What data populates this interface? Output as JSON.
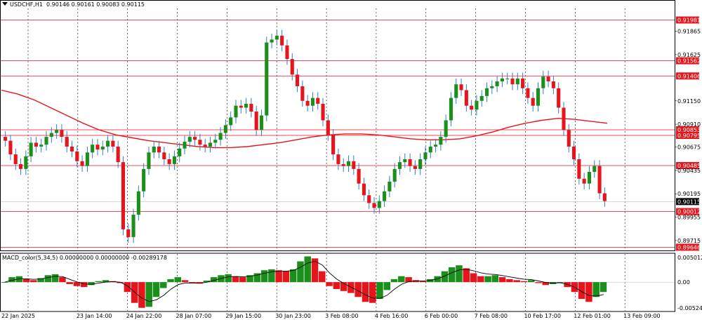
{
  "header": {
    "symbol": "USDCHF,H1",
    "ohlc": "0.90146 0.90161 0.90083 0.90115"
  },
  "indicator": {
    "label": "MACD_color(5,34,5) 0.00000000 0.00000000 -0.00289178"
  },
  "colors": {
    "bull": "#1a8f1a",
    "bear": "#e8141b",
    "wick": "#2f7fd0",
    "ma": "#e8141b",
    "level": "#e8141b",
    "bid": "#c8c8c8",
    "grid": "#000000",
    "signal": "#000000"
  },
  "chart_data": [
    {
      "type": "line",
      "title": "USDCHF,H1",
      "y_ticks": [
        "0.91865",
        "0.91625",
        "0.91150",
        "0.90910",
        "0.90675",
        "0.90435",
        "0.90195",
        "0.89955",
        "0.89715"
      ],
      "ylim": [
        0.8962,
        0.921
      ],
      "horizontal_levels": [
        "0.91981",
        "0.91562",
        "0.91406",
        "0.90853",
        "0.90795",
        "0.90485",
        "0.90012",
        "0.89646"
      ],
      "current_price": "0.90115",
      "x_ticks": [
        "22 Jan 2025",
        "23 Jan 14:00",
        "24 Jan 22:00",
        "28 Jan 07:00",
        "29 Jan 15:00",
        "30 Jan 23:00",
        "3 Feb 08:00",
        "4 Feb 16:00",
        "6 Feb 00:00",
        "7 Feb 08:00",
        "10 Feb 17:00",
        "12 Feb 01:00",
        "13 Feb 09:00"
      ],
      "series": [
        {
          "values": [
            0.9074,
            0.906,
            0.905,
            0.9045,
            0.9058,
            0.9072,
            0.9068,
            0.907,
            0.9078,
            0.9082,
            0.9085,
            0.9078,
            0.9068,
            0.9063,
            0.9053,
            0.9048,
            0.9062,
            0.907,
            0.9065,
            0.9068,
            0.9074,
            0.9068,
            0.9052,
            0.8983,
            0.8975,
            0.8998,
            0.9022,
            0.9045,
            0.9062,
            0.9068,
            0.9062,
            0.9055,
            0.905,
            0.9058,
            0.9066,
            0.9073,
            0.9078,
            0.9075,
            0.907,
            0.9068,
            0.9072,
            0.9075,
            0.9082,
            0.909,
            0.9098,
            0.911,
            0.9108,
            0.9112,
            0.9104,
            0.9085,
            0.91,
            0.9175,
            0.9178,
            0.9182,
            0.9172,
            0.9158,
            0.9142,
            0.913,
            0.9115,
            0.911,
            0.9118,
            0.9112,
            0.9095,
            0.908,
            0.906,
            0.905,
            0.9048,
            0.9053,
            0.9045,
            0.903,
            0.9018,
            0.901,
            0.9005,
            0.9012,
            0.9022,
            0.9032,
            0.9045,
            0.9052,
            0.9055,
            0.9048,
            0.9045,
            0.9055,
            0.9062,
            0.9068,
            0.907,
            0.9078,
            0.9095,
            0.9118,
            0.9132,
            0.9126,
            0.911,
            0.9106,
            0.9115,
            0.912,
            0.9128,
            0.913,
            0.9135,
            0.9138,
            0.9138,
            0.9132,
            0.9138,
            0.9128,
            0.9118,
            0.911,
            0.9128,
            0.914,
            0.9135,
            0.9128,
            0.9108,
            0.9085,
            0.9068,
            0.9055,
            0.9035,
            0.903,
            0.9042,
            0.9048,
            0.902,
            0.9012
          ]
        },
        {
          "values": [
            0.9126,
            0.9122,
            0.9116,
            0.9108,
            0.91,
            0.9092,
            0.9085,
            0.908,
            0.9077,
            0.9074,
            0.9072,
            0.907,
            0.9068,
            0.9067,
            0.9067,
            0.9068,
            0.907,
            0.9072,
            0.9075,
            0.9078,
            0.908,
            0.9081,
            0.9081,
            0.908,
            0.9078,
            0.9076,
            0.9075,
            0.9075,
            0.9076,
            0.9079,
            0.9083,
            0.9088,
            0.9092,
            0.9095,
            0.9097,
            0.9096,
            0.9094,
            0.9092
          ]
        }
      ],
      "macd": {
        "title": "MACD_color(5,34,5)",
        "y_ticks": [
          "0.0050123",
          "0.00",
          "-0.0052489"
        ],
        "ylim": [
          -0.0058,
          0.0057
        ],
        "values": [
          0.0,
          0.001,
          0.0012,
          0.0006,
          0.0004,
          0.0008,
          0.0014,
          0.0016,
          0.001,
          -0.0004,
          -0.0008,
          -0.001,
          -0.0006,
          0.0002,
          0.0004,
          0.0002,
          -0.0002,
          -0.002,
          -0.0042,
          -0.0052,
          -0.005,
          -0.003,
          -0.0012,
          0.0006,
          0.001,
          0.0004,
          -0.0002,
          -0.0003,
          0.0003,
          0.001,
          0.0014,
          0.0016,
          0.0012,
          0.001,
          0.0014,
          0.0018,
          0.0024,
          0.0026,
          0.0024,
          0.0022,
          0.0026,
          0.0042,
          0.0052,
          0.0048,
          0.0022,
          -0.0008,
          -0.0014,
          -0.0018,
          -0.0022,
          -0.003,
          -0.004,
          -0.0042,
          -0.0034,
          -0.0016,
          0.0006,
          0.0012,
          0.001,
          0.0004,
          0.0002,
          0.0006,
          0.0012,
          0.0022,
          0.003,
          0.0034,
          0.0028,
          0.0018,
          0.0012,
          0.0012,
          0.0014,
          0.001,
          0.0006,
          0.0004,
          0.0002,
          0.0004,
          -0.0002,
          -0.0006,
          -0.0004,
          0.0,
          -0.001,
          -0.002,
          -0.0034,
          -0.004,
          -0.003,
          -0.002
        ]
      }
    }
  ]
}
